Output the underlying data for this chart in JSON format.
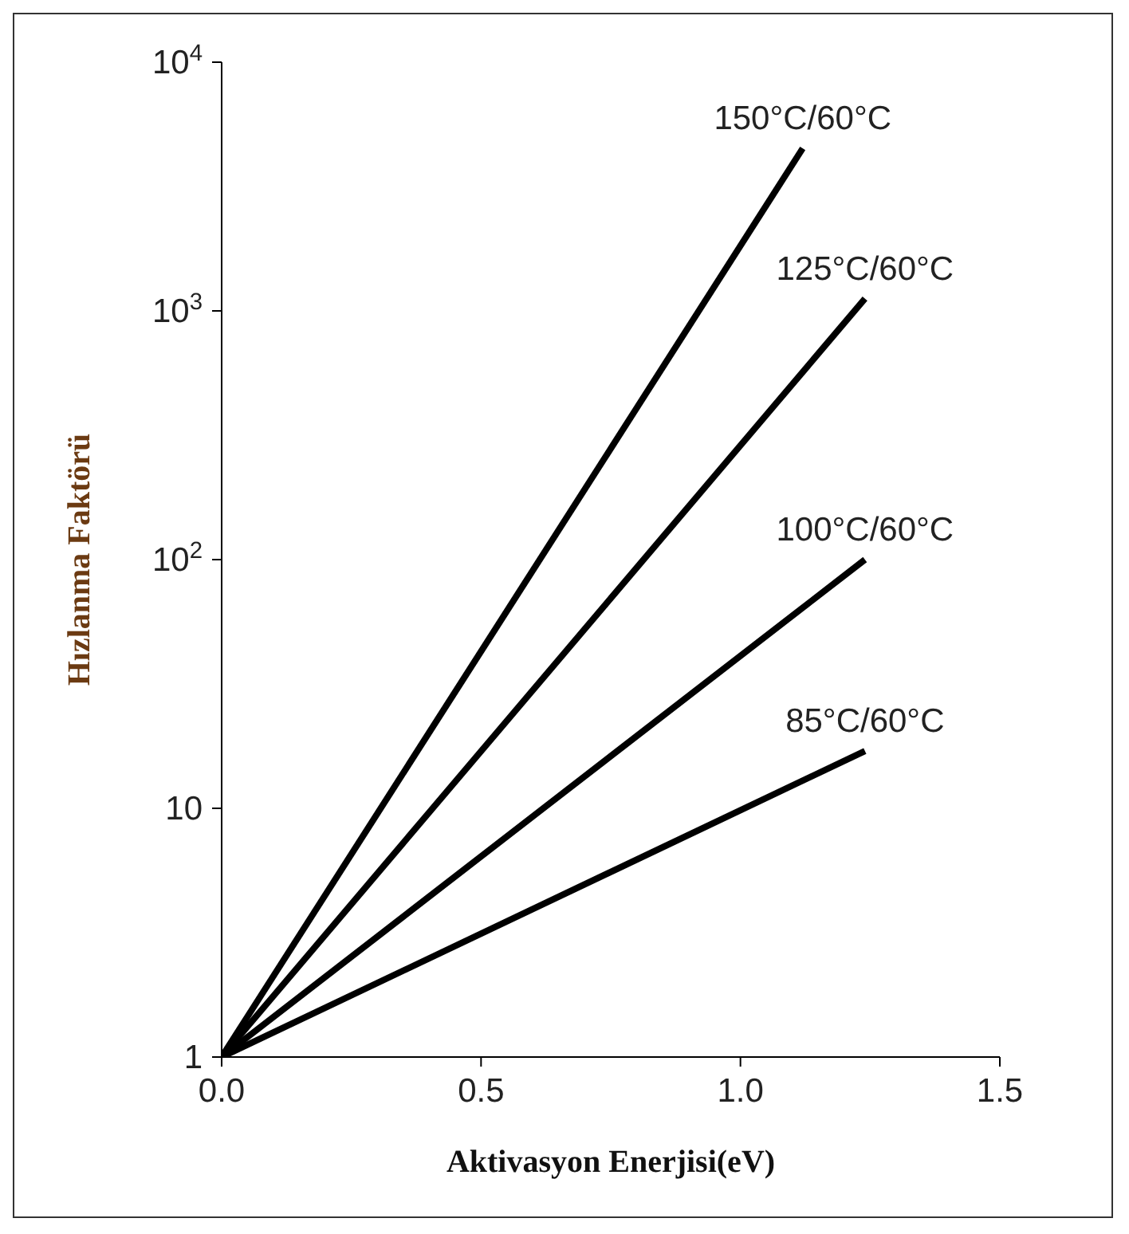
{
  "chart_data": {
    "type": "line",
    "xlabel": "Aktivasyon Enerjisi(eV)",
    "ylabel": "Hızlanma Faktörü",
    "log": "y",
    "xlim": [
      0,
      1.5
    ],
    "xticks": [
      {
        "value": 0,
        "label": "0.0"
      },
      {
        "value": 0.5,
        "label": "0.5"
      },
      {
        "value": 1,
        "label": "1.0"
      },
      {
        "value": 1.5,
        "label": "1.5"
      }
    ],
    "ylim": [
      1,
      10000
    ],
    "yticks": [
      1,
      10,
      {
        "value": 100,
        "label": "10$^{2}$"
      },
      {
        "value": 1000,
        "label": "10$^{3}$"
      },
      {
        "value": 10000,
        "label": "10$^{4}$"
      }
    ],
    "grid": false,
    "legend": false,
    "marker": "none",
    "line_style": "solid",
    "series": [
      {
        "name": "150°C/60°C",
        "color": "#000000",
        "x": [
          0,
          1.12
        ],
        "values": [
          1,
          4500
        ]
      },
      {
        "name": "125°C/60°C",
        "color": "#000000",
        "x": [
          0,
          1.24
        ],
        "values": [
          1,
          1120
        ]
      },
      {
        "name": "100°C/60°C",
        "color": "#000000",
        "x": [
          0,
          1.24
        ],
        "values": [
          1,
          100
        ]
      },
      {
        "name": "85°C/60°C",
        "color": "#000000",
        "x": [
          0,
          1.24
        ],
        "values": [
          1,
          17
        ]
      }
    ]
  }
}
